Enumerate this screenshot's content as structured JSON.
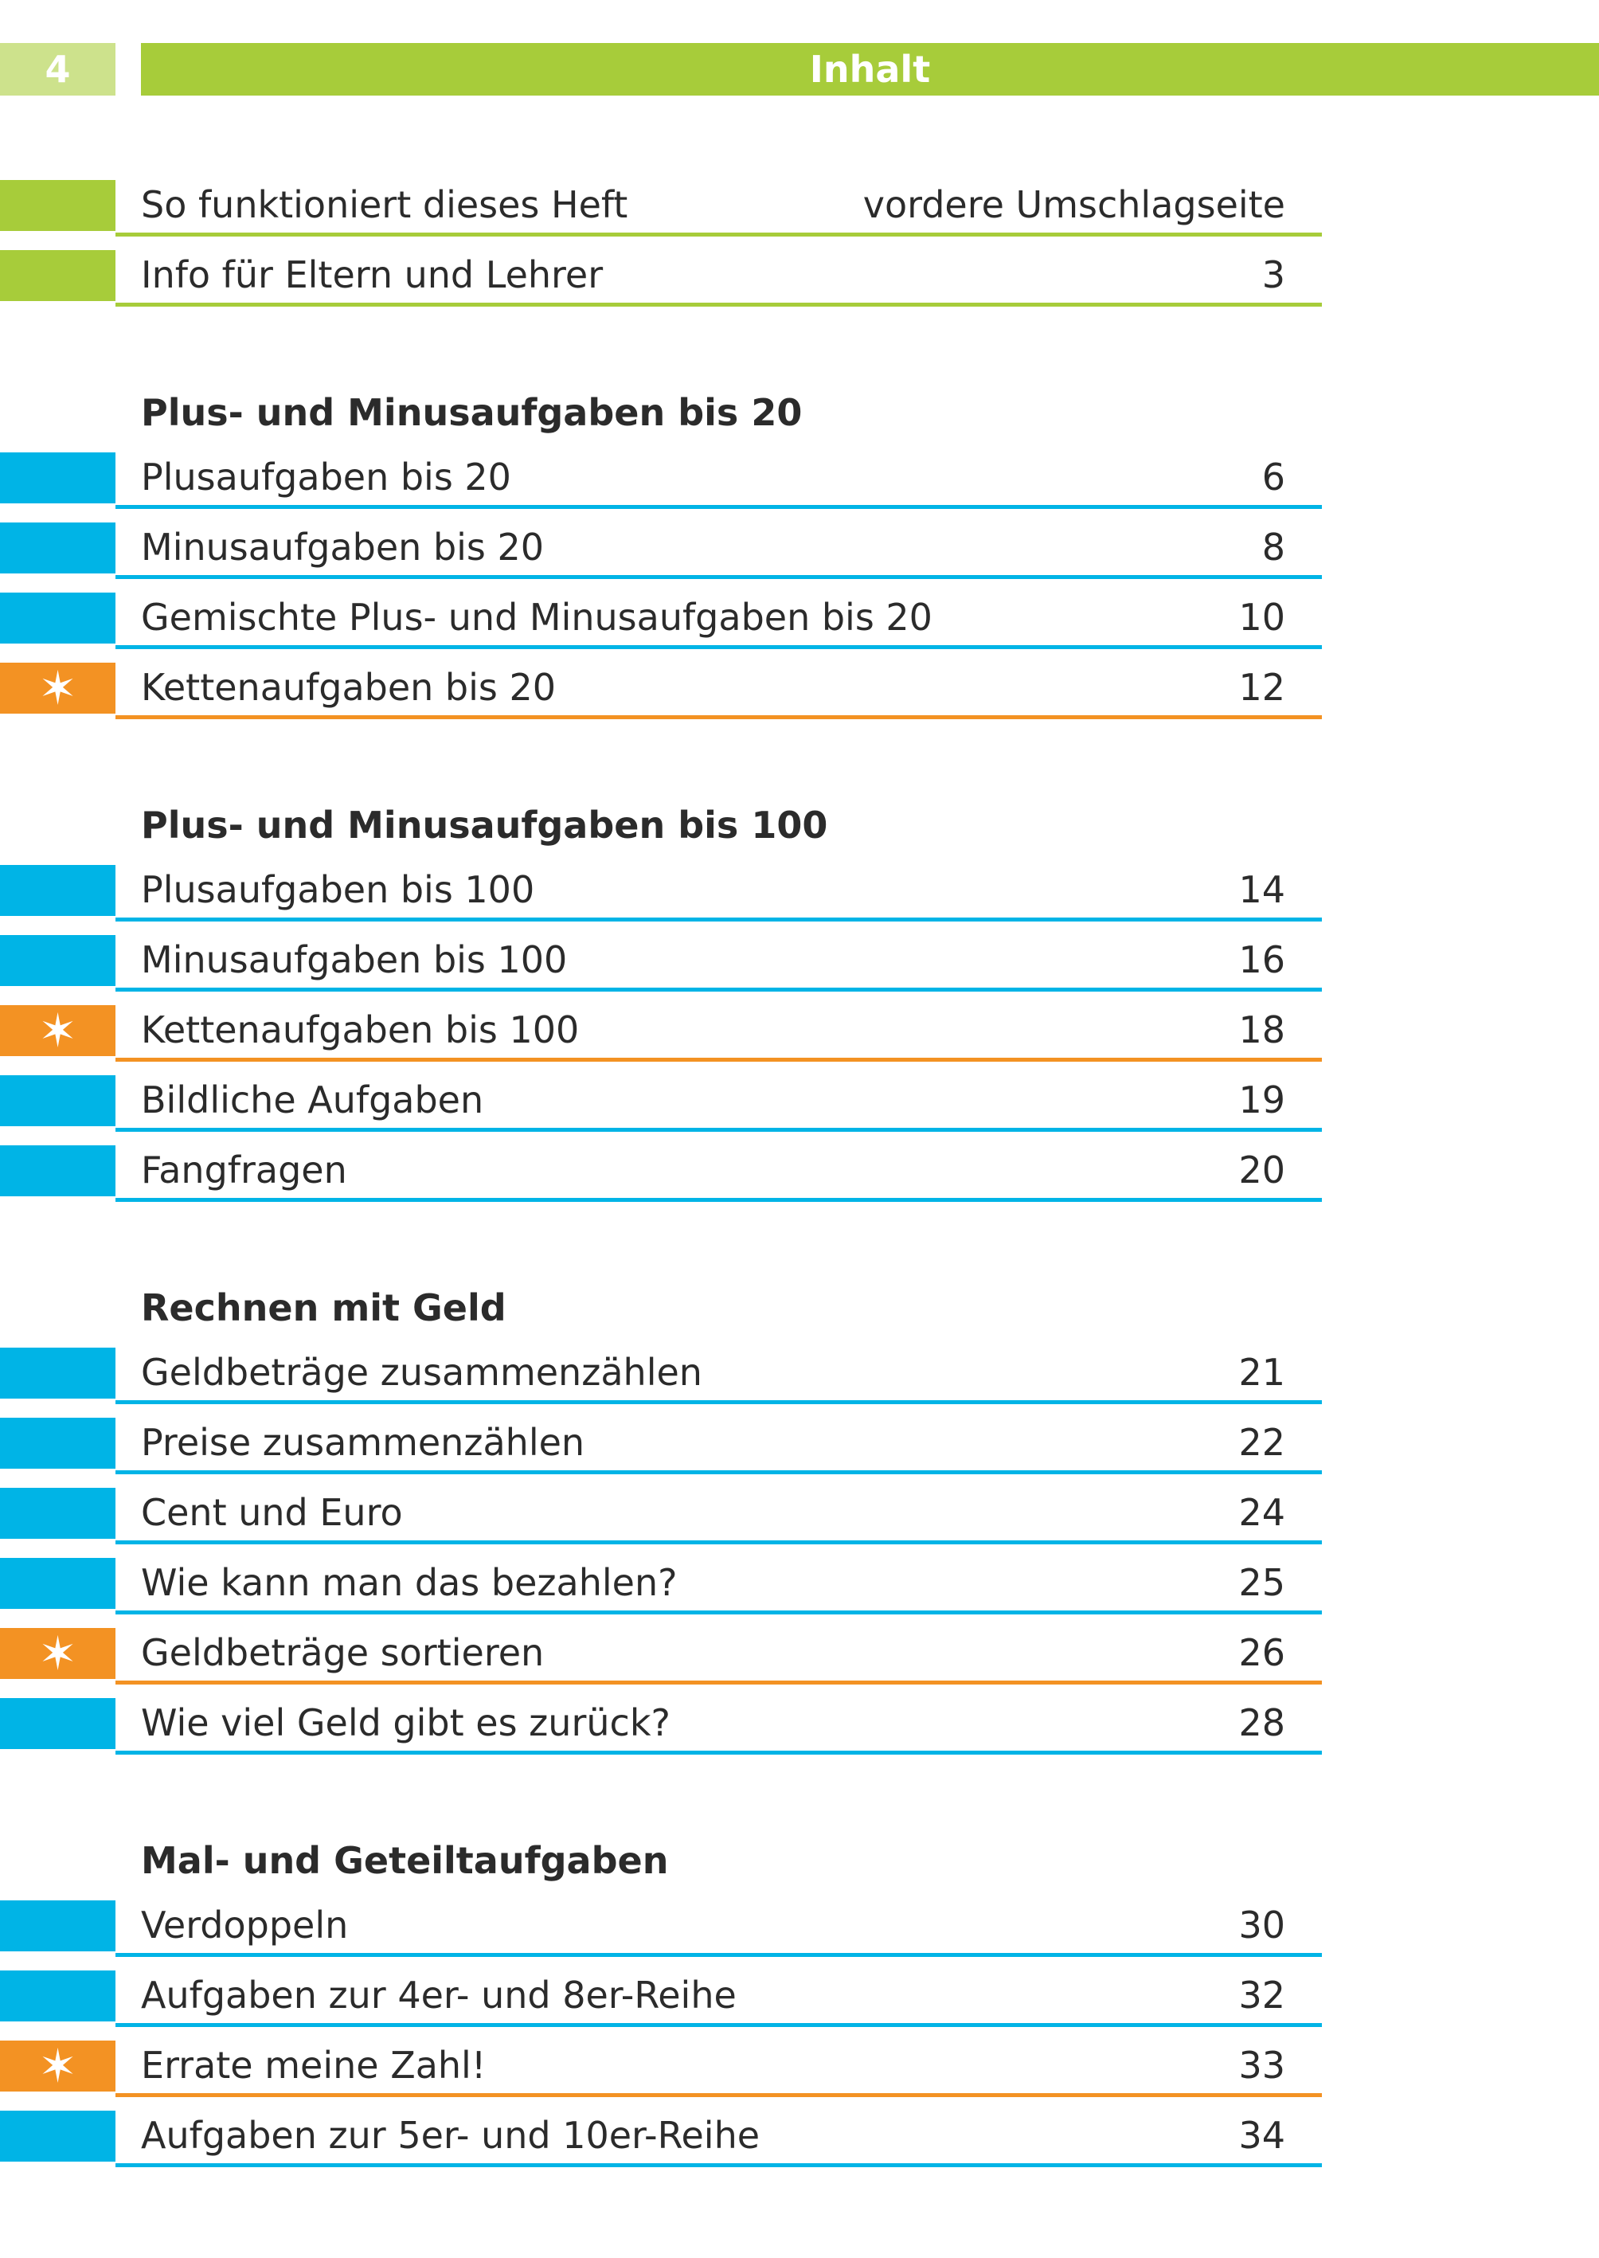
{
  "header": {
    "page_number": "4",
    "title": "Inhalt"
  },
  "colors": {
    "green": "#a7cc3a",
    "light_green": "#cde28c",
    "blue": "#00b4e6",
    "orange": "#f39223"
  },
  "groups": [
    {
      "heading": "",
      "rows": [
        {
          "label": "So funktioniert dieses Heft",
          "page": "vordere Umschlagseite",
          "type": "green"
        },
        {
          "label": "Info für Eltern und Lehrer",
          "page": "3",
          "type": "green"
        }
      ]
    },
    {
      "heading": "Plus- und Minusaufgaben bis 20",
      "rows": [
        {
          "label": "Plusaufgaben bis 20",
          "page": "6",
          "type": "blue"
        },
        {
          "label": "Minusaufgaben bis 20",
          "page": "8",
          "type": "blue"
        },
        {
          "label": "Gemischte Plus- und Minusaufgaben bis 20",
          "page": "10",
          "type": "blue"
        },
        {
          "label": "Kettenaufgaben bis 20",
          "page": "12",
          "type": "orange",
          "icon": "star-icon"
        }
      ]
    },
    {
      "heading": "Plus- und Minusaufgaben bis 100",
      "rows": [
        {
          "label": "Plusaufgaben bis 100",
          "page": "14",
          "type": "blue"
        },
        {
          "label": "Minusaufgaben bis 100",
          "page": "16",
          "type": "blue"
        },
        {
          "label": "Kettenaufgaben bis 100",
          "page": "18",
          "type": "orange",
          "icon": "star-icon"
        },
        {
          "label": "Bildliche Aufgaben",
          "page": "19",
          "type": "blue"
        },
        {
          "label": "Fangfragen",
          "page": "20",
          "type": "blue"
        }
      ]
    },
    {
      "heading": "Rechnen mit Geld",
      "rows": [
        {
          "label": "Geldbeträge zusammenzählen",
          "page": "21",
          "type": "blue"
        },
        {
          "label": "Preise zusammenzählen",
          "page": "22",
          "type": "blue"
        },
        {
          "label": "Cent und Euro",
          "page": "24",
          "type": "blue"
        },
        {
          "label": "Wie kann man das bezahlen?",
          "page": "25",
          "type": "blue"
        },
        {
          "label": "Geldbeträge sortieren",
          "page": "26",
          "type": "orange",
          "icon": "star-icon"
        },
        {
          "label": "Wie viel Geld gibt es zurück?",
          "page": "28",
          "type": "blue"
        }
      ]
    },
    {
      "heading": "Mal- und Geteiltaufgaben",
      "rows": [
        {
          "label": "Verdoppeln",
          "page": "30",
          "type": "blue"
        },
        {
          "label": "Aufgaben zur 4er- und 8er-Reihe",
          "page": "32",
          "type": "blue"
        },
        {
          "label": "Errate meine Zahl!",
          "page": "33",
          "type": "orange",
          "icon": "star-icon"
        },
        {
          "label": "Aufgaben zur 5er- und 10er-Reihe",
          "page": "34",
          "type": "blue"
        }
      ]
    }
  ]
}
